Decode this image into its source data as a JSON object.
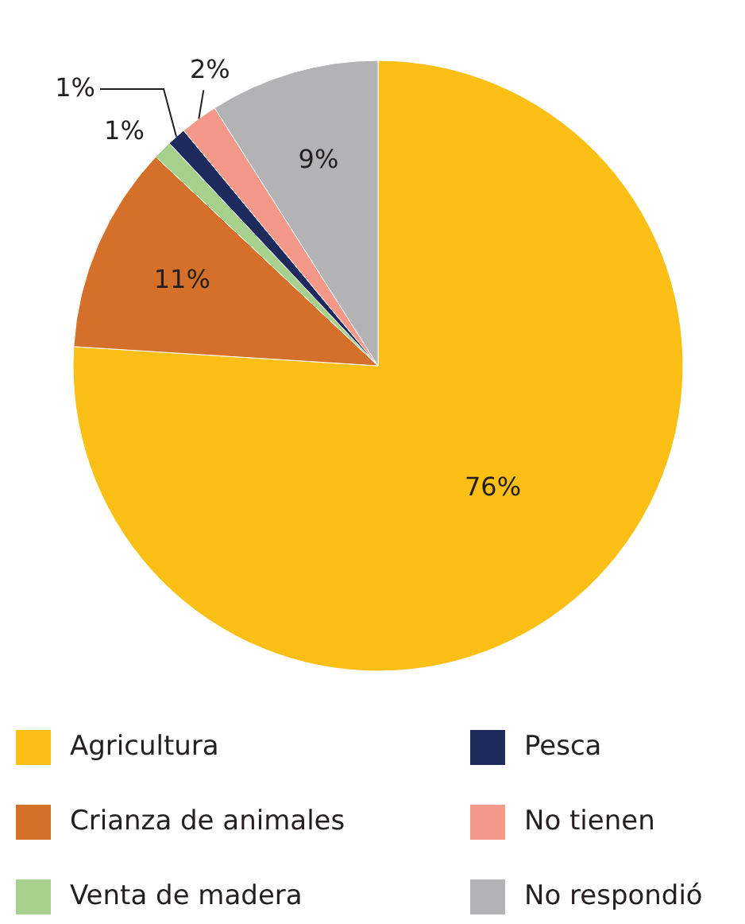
{
  "chart_data": {
    "type": "pie",
    "categories": [
      "Agricultura",
      "Crianza de animales",
      "Venta de madera",
      "Pesca",
      "No tienen",
      "No respondió"
    ],
    "values": [
      76,
      11,
      1,
      1,
      2,
      9
    ],
    "colors": [
      "#fbbf16",
      "#d4702a",
      "#a8d08d",
      "#1f2a5c",
      "#f4998a",
      "#b3b3b5"
    ],
    "value_labels": [
      "76%",
      "11%",
      "1%",
      "1%",
      "2%",
      "9%"
    ],
    "legend": "bottom"
  }
}
